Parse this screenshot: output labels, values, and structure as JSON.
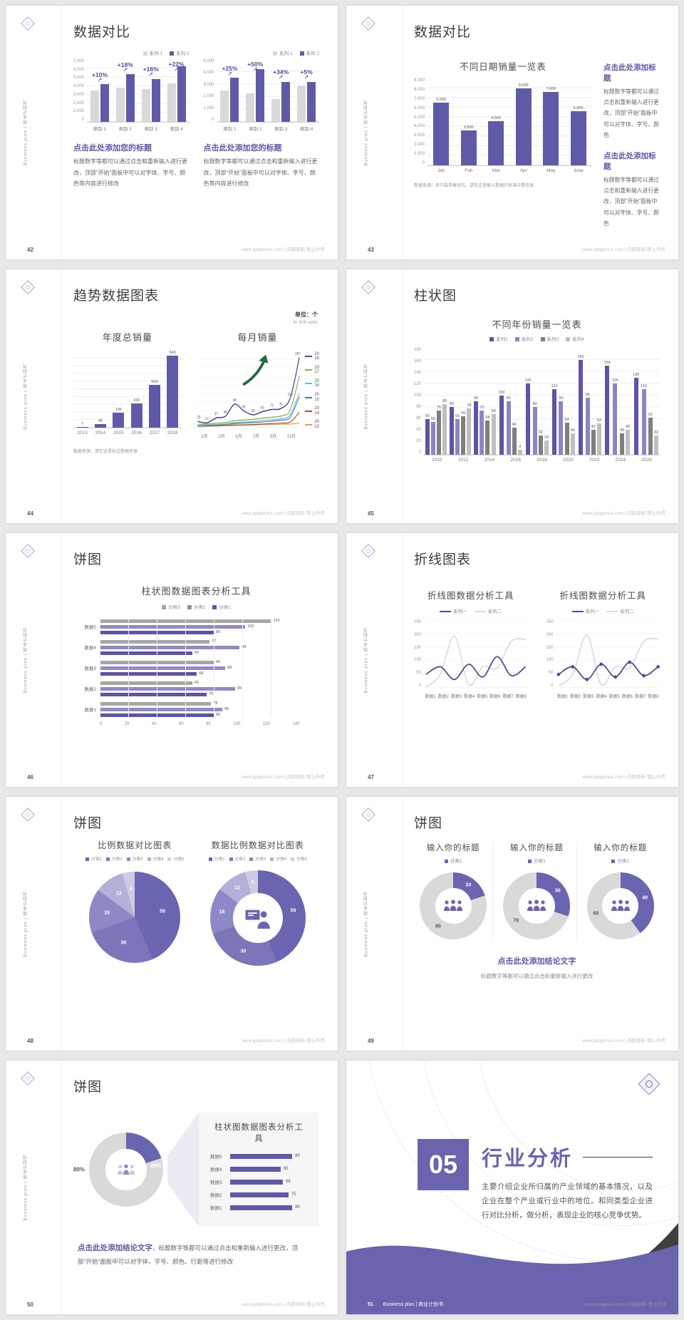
{
  "meta": {
    "brand_footer": "www.pptgenius.com | 内部资料 禁止外传",
    "sidebar_text": "Business plan | 商业计划书",
    "accent_color": "#5f5aa8"
  },
  "s42": {
    "page": "42",
    "title": "数据对比",
    "legend": [
      {
        "label": "系列 1",
        "color": "#d9d9d9"
      },
      {
        "label": "系列 2",
        "color": "#5f5aa8"
      }
    ],
    "chart_left": {
      "type": "bar",
      "ymax": 7000,
      "yticks": [
        "7,000",
        "6,000",
        "5,000",
        "4,000",
        "3,000",
        "2,000",
        "1,000",
        "0"
      ],
      "categories": [
        "类别 1",
        "类别 2",
        "类别 3",
        "类别 4"
      ],
      "series": [
        {
          "name": "系列 1",
          "color": "#d9d9d9",
          "values": [
            3500,
            3800,
            3700,
            4300
          ]
        },
        {
          "name": "系列 2",
          "color": "#5f5aa8",
          "values": [
            4200,
            5300,
            4800,
            6200
          ]
        }
      ],
      "badges": [
        "+10%",
        "+18%",
        "+16%",
        "+22%"
      ]
    },
    "chart_right": {
      "type": "bar",
      "ymax": 5000,
      "yticks": [
        "5,000",
        "4,000",
        "3,000",
        "2,000",
        "1,000",
        "0"
      ],
      "categories": [
        "类别 1",
        "类别 2",
        "类别 3",
        "类别 4"
      ],
      "series": [
        {
          "name": "系列 1",
          "color": "#d9d9d9",
          "values": [
            2500,
            2300,
            1800,
            2900
          ]
        },
        {
          "name": "系列 2",
          "color": "#5f5aa8",
          "values": [
            3500,
            4200,
            3200,
            3200
          ]
        }
      ],
      "badges": [
        "+25%",
        "+50%",
        "+34%",
        "+5%"
      ]
    },
    "block_title": "点击此处添加您的标题",
    "block_body": "标题数字等都可以通过点击和重新输入进行更改，顶部“开始”面板中可以对字体、字号、颜色等内容进行修改"
  },
  "s43": {
    "page": "43",
    "title": "数据对比",
    "chart": {
      "type": "bar",
      "title": "不同日期销量一览表",
      "ymax": 9000,
      "yticks": [
        "9,000",
        "8,000",
        "7,000",
        "6,000",
        "5,000",
        "4,000",
        "3,000",
        "2,000",
        "1,000",
        "0"
      ],
      "categories": [
        "Jan",
        "Feb",
        "Mar",
        "Apr",
        "May",
        "June"
      ],
      "series": [
        {
          "name": "销量",
          "color": "#5f5aa8",
          "values": [
            6500,
            3600,
            4560,
            8000,
            7600,
            5600
          ],
          "labels": [
            "6,500",
            "3,600",
            "4,560",
            "8,000",
            "7,600",
            "5,600"
          ]
        }
      ]
    },
    "source": "数据来源：尼尔森零售研究，请在这里输入数据的来源详情信息",
    "blocks": [
      {
        "title": "点击此处添加标题",
        "body": "标题数字等都可以通过点击和重新输入进行更改，顶部“开始”面板中可以对字体、字号、颜色"
      },
      {
        "title": "点击此处添加标题",
        "body": "标题数字等都可以通过点击和重新输入进行更改，顶部“开始”面板中可以对字体、字号、颜色"
      }
    ]
  },
  "s44": {
    "page": "44",
    "title": "趋势数据图表",
    "unit_cn": "单位：个",
    "unit_en": "in '000 units",
    "source": "数据来源：请在这里标注数据来源",
    "bar": {
      "type": "bar",
      "title": "年度总销量",
      "ymax": 1000,
      "categories": [
        "2013",
        "2014",
        "2015",
        "2016",
        "2017",
        "2018"
      ],
      "series": [
        {
          "name": "年度总销量",
          "color": "#5f5aa8",
          "values": [
            7,
            45,
            196,
            316,
            554,
            943
          ]
        }
      ]
    },
    "line": {
      "type": "line",
      "title": "每月销量",
      "ymax": 300,
      "xticks": [
        "1月",
        "3月",
        "5月",
        "7月",
        "9月",
        "11月"
      ],
      "series": [
        {
          "name": "2018",
          "color": "#4f4a99",
          "width": 1.6,
          "values": [
            23,
            17,
            37,
            44,
            94,
            66,
            50,
            63,
            72,
            76,
            118,
            287
          ],
          "labels": [
            "23",
            "17",
            "37",
            "44",
            "94",
            "66",
            "50",
            "63",
            "72",
            "76",
            "118",
            "287"
          ]
        },
        {
          "name": "2017",
          "color": "#8cb43b",
          "width": 1.4,
          "values": [
            10,
            12,
            15,
            18,
            26,
            28,
            31,
            36,
            40,
            45,
            70,
            210
          ]
        },
        {
          "name": "2016",
          "color": "#62b8d8",
          "width": 1.2,
          "values": [
            5,
            8,
            10,
            12,
            18,
            20,
            22,
            26,
            30,
            34,
            50,
            140
          ]
        },
        {
          "name": "2015",
          "color": "#3a7bbf",
          "width": 1.2,
          "values": [
            4,
            6,
            8,
            10,
            14,
            16,
            18,
            20,
            24,
            28,
            40,
            125
          ]
        },
        {
          "name": "2014",
          "color": "#b0492c",
          "width": 1.2,
          "values": [
            3,
            4,
            5,
            6,
            8,
            9,
            10,
            12,
            14,
            16,
            20,
            60
          ]
        },
        {
          "name": "2013",
          "color": "#e6a23c",
          "width": 1.2,
          "values": [
            2,
            3,
            4,
            5,
            6,
            7,
            8,
            9,
            10,
            11,
            12,
            15
          ]
        }
      ]
    }
  },
  "s45": {
    "page": "45",
    "title": "柱状图",
    "chart": {
      "type": "bar",
      "title": "不同年份销量一览表",
      "ymax": 180,
      "yticks": [
        "180",
        "160",
        "140",
        "120",
        "100",
        "80",
        "60",
        "40",
        "20",
        "0"
      ],
      "categories": [
        "2010",
        "2012",
        "2014",
        "2016",
        "2018",
        "2020",
        "2022",
        "2024",
        "2026"
      ],
      "series": [
        {
          "name": "系列1",
          "color": "#5b55a6",
          "values": [
            60,
            80,
            90,
            100,
            120,
            110,
            160,
            150,
            130
          ]
        },
        {
          "name": "系列2",
          "color": "#8a86c4",
          "values": [
            55,
            60,
            75,
            90,
            80,
            90,
            96,
            120,
            110
          ]
        },
        {
          "name": "系列3",
          "color": "#7f7f7f",
          "values": [
            75,
            65,
            58,
            46,
            32,
            54,
            42,
            36,
            62
          ]
        },
        {
          "name": "系列4",
          "color": "#bfbfbf",
          "values": [
            85,
            78,
            68,
            9,
            24,
            36,
            53,
            42,
            32
          ]
        }
      ]
    }
  },
  "s46": {
    "page": "46",
    "title": "饼图",
    "chart": {
      "type": "bar-horizontal",
      "title": "柱状图数据图表分析工具",
      "xmax": 140,
      "xticks": [
        "0",
        "20",
        "40",
        "60",
        "80",
        "100",
        "120",
        "140"
      ],
      "legend": [
        {
          "label": "分类3",
          "color": "#a6a6a6"
        },
        {
          "label": "分类2",
          "color": "#8f8bc7"
        },
        {
          "label": "分类1",
          "color": "#5b55a6"
        }
      ],
      "colors": [
        "#a6a6a6",
        "#8f8bc7",
        "#5b55a6"
      ],
      "rows": [
        {
          "label": "数据5",
          "values": [
            120,
            102,
            80
          ]
        },
        {
          "label": "数据4",
          "values": [
            77,
            98,
            65
          ]
        },
        {
          "label": "数据3",
          "values": [
            80,
            88,
            68
          ]
        },
        {
          "label": "数据2",
          "values": [
            65,
            95,
            75
          ]
        },
        {
          "label": "数据1",
          "values": [
            78,
            86,
            80
          ]
        }
      ]
    }
  },
  "s47": {
    "page": "47",
    "title": "折线图表",
    "charts": [
      {
        "type": "line",
        "title": "折线图数据分析工具",
        "legend": [
          "系列一",
          "系列二"
        ],
        "ymax": 250,
        "yticks": [
          "250",
          "200",
          "150",
          "100",
          "50",
          "0"
        ],
        "xticks": [
          "数据1",
          "数据2",
          "数据3",
          "数据4",
          "数据5",
          "数据6",
          "数据7",
          "数据8"
        ],
        "series": [
          {
            "name": "系列一",
            "color": "#4f4a99",
            "width": 1.8,
            "values": [
              50,
              80,
              30,
              90,
              40,
              120,
              45,
              80
            ]
          },
          {
            "name": "系列二",
            "color": "#dcdcdc",
            "width": 1.8,
            "values": [
              0,
              50,
              200,
              10,
              80,
              75,
              180,
              188
            ]
          }
        ]
      },
      {
        "type": "line",
        "title": "折线图数据分析工具",
        "legend": [
          "系列一",
          "系列二"
        ],
        "ymax": 250,
        "yticks": [
          "250",
          "200",
          "150",
          "100",
          "50",
          "0"
        ],
        "xticks": [
          "数据1",
          "数据2",
          "数据3",
          "数据4",
          "数据5",
          "数据6",
          "数据7",
          "数据8"
        ],
        "series": [
          {
            "name": "系列一",
            "color": "#4f4a99",
            "width": 1.8,
            "markers": true,
            "values": [
              50,
              80,
              30,
              90,
              40,
              98,
              45,
              80
            ]
          },
          {
            "name": "系列二",
            "color": "#dcdcdc",
            "width": 1.8,
            "values": [
              5,
              50,
              205,
              10,
              80,
              75,
              180,
              190
            ]
          }
        ]
      }
    ]
  },
  "s48": {
    "page": "48",
    "title": "饼图",
    "pies": [
      {
        "type": "pie",
        "title": "比例数据对比图表",
        "legend": [
          "分类1",
          "分类2",
          "分类3",
          "分类4",
          "分类5"
        ],
        "values": [
          50,
          30,
          18,
          12,
          5
        ],
        "colors": [
          "#6a65b0",
          "#7b76ba",
          "#8d88c6",
          "#b3b0d9",
          "#cecbe6"
        ],
        "labelColor": "#ffffff"
      },
      {
        "type": "donut",
        "title": "数据比例数据对比图表",
        "legend": [
          "分类1",
          "分类2",
          "分类3",
          "分类4",
          "分类5"
        ],
        "values": [
          50,
          30,
          18,
          12,
          5
        ],
        "colors": [
          "#6a65b0",
          "#7b76ba",
          "#8d88c6",
          "#b3b0d9",
          "#cecbe6"
        ],
        "labelColor": "#ffffff"
      }
    ]
  },
  "s49": {
    "page": "49",
    "title": "饼图",
    "cols": [
      {
        "title": "输入你的标题",
        "legend": "分类1",
        "pie": {
          "type": "donut",
          "values": [
            20,
            80
          ],
          "colors": [
            "#6a65b0",
            "#d9d9d9"
          ],
          "labelColors": [
            "#ffffff",
            "#555555"
          ]
        }
      },
      {
        "title": "输入你的标题",
        "legend": "分类1",
        "pie": {
          "type": "donut",
          "values": [
            30,
            70
          ],
          "colors": [
            "#6a65b0",
            "#d9d9d9"
          ],
          "labelColors": [
            "#ffffff",
            "#555555"
          ]
        }
      },
      {
        "title": "输入你的标题",
        "legend": "分类1",
        "pie": {
          "type": "donut",
          "values": [
            40,
            60
          ],
          "colors": [
            "#6a65b0",
            "#d9d9d9"
          ],
          "labelColors": [
            "#ffffff",
            "#555555"
          ]
        }
      }
    ],
    "conclusion_title": "点击此处添加结论文字",
    "conclusion_body": "标题数字等都可以通过点击和重新输入进行更改"
  },
  "s50": {
    "page": "50",
    "title": "饼图",
    "donut": {
      "type": "donut",
      "values": [
        20,
        80
      ],
      "colors": [
        "#6a65b0",
        "#d9d9d9"
      ],
      "labels": [
        "",
        ""
      ],
      "label_purple": "20%",
      "label_gray": "80%"
    },
    "panel": {
      "type": "bar-list",
      "title": "柱状图数据图表分析工具",
      "max": 100,
      "rows": [
        {
          "label": "数据5",
          "value": 80
        },
        {
          "label": "数据4",
          "value": 65
        },
        {
          "label": "数据3",
          "value": 68
        },
        {
          "label": "数据2",
          "value": 75
        },
        {
          "label": "数据1",
          "value": 80
        }
      ]
    },
    "conclusion_lead": "点击此处添加结论文字",
    "conclusion_rest": "，标题数字等都可以通过点击和重新输入进行更改，顶部“开始”面板中可以对字体、字号、颜色、行距等进行修改"
  },
  "s51": {
    "page": "51",
    "number": "05",
    "title": "行业分析",
    "body": "主要介绍企业所归属的产业领域的基本情况，以及企业在整个产业或行业中的地位。和同类型企业进行对比分析，做分析，表现企业的核心竞争优势。",
    "footer_label": "Business plan | 商业计划书"
  }
}
